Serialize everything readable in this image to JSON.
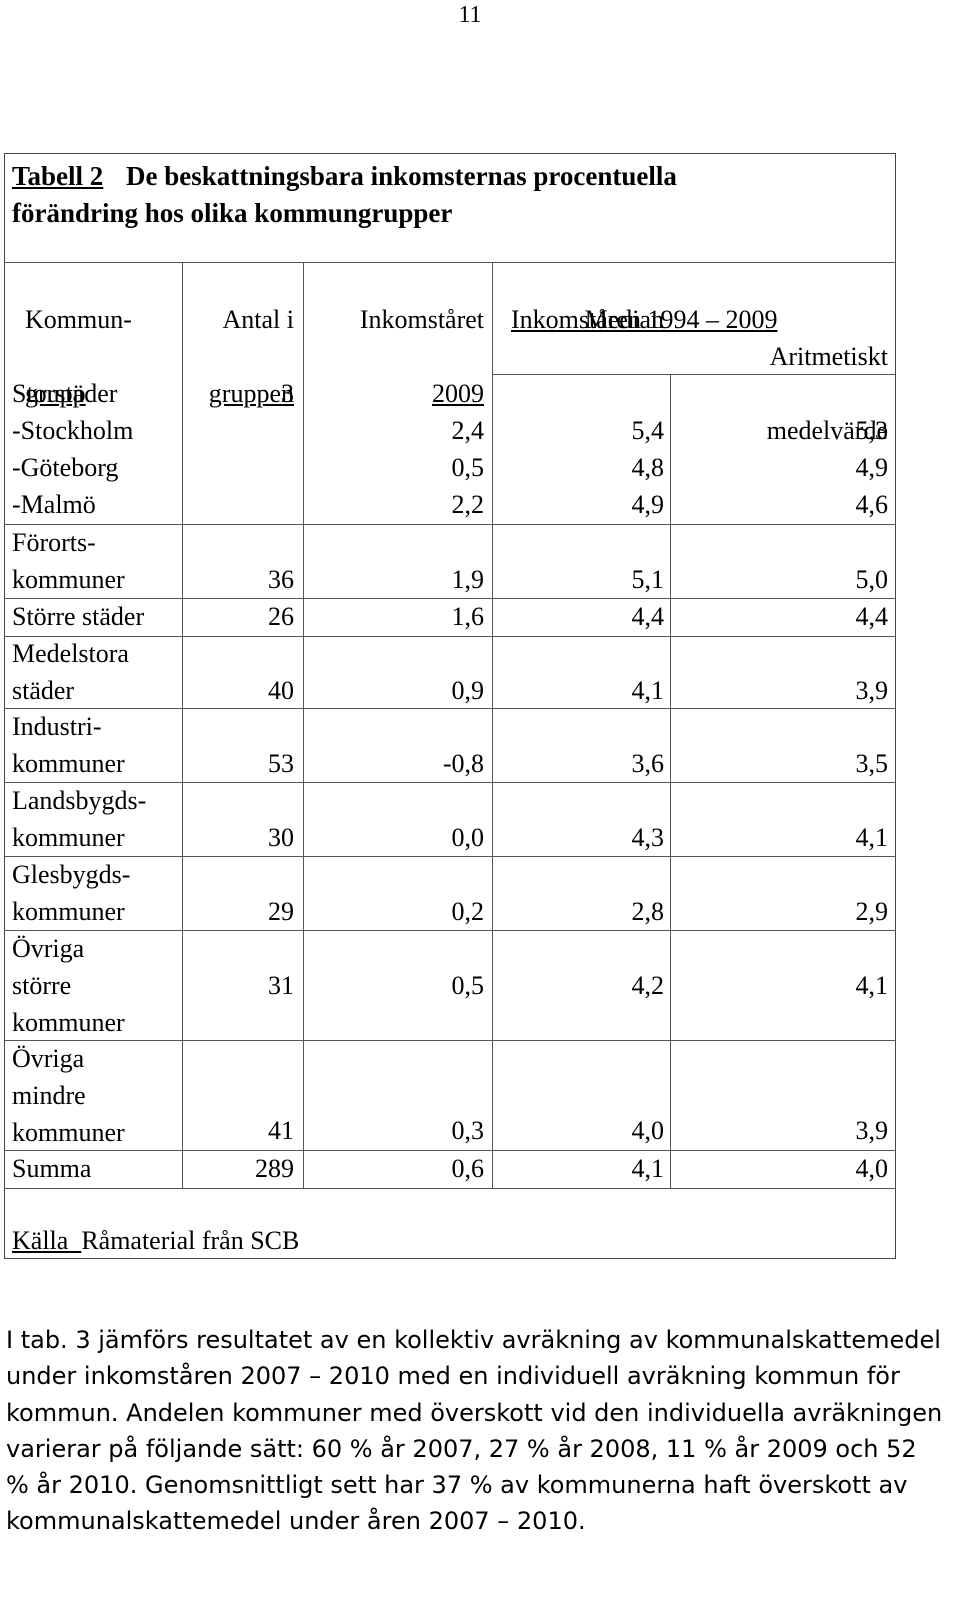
{
  "page_number": "11",
  "table": {
    "label": "Tabell 2",
    "title_line1": "De beskattningsbara inkomsternas procentuella",
    "title_line2": "förändring hos olika kommungrupper",
    "headers": {
      "col1_line1": "Kommun-",
      "col1_line2": "grupp",
      "col2_line1": "Antal i",
      "col2_line2": "gruppen",
      "col3_line1": "Inkomståret",
      "col3_line2": "2009",
      "span_header": "Inkomståren 1994 – 2009",
      "col4": "Median",
      "col5_line1": "Aritmetiskt",
      "col5_line2": "medelvärde"
    },
    "rows": [
      {
        "name": "Storstäder",
        "count": "3",
        "year2009": "",
        "median": "",
        "mean": ""
      },
      {
        "name": "-Stockholm",
        "count": "",
        "year2009": "2,4",
        "median": "5,4",
        "mean": "5,3"
      },
      {
        "name": "-Göteborg",
        "count": "",
        "year2009": "0,5",
        "median": "4,8",
        "mean": "4,9"
      },
      {
        "name": "-Malmö",
        "count": "",
        "year2009": "2,2",
        "median": "4,9",
        "mean": "4,6"
      },
      {
        "name_line1": "Förorts-",
        "name_line2": "kommuner",
        "count": "36",
        "year2009": "1,9",
        "median": "5,1",
        "mean": "5,0"
      },
      {
        "name": "Större städer",
        "count": "26",
        "year2009": "1,6",
        "median": "4,4",
        "mean": "4,4"
      },
      {
        "name_line1": "Medelstora",
        "name_line2": "städer",
        "count": "40",
        "year2009": "0,9",
        "median": "4,1",
        "mean": "3,9"
      },
      {
        "name_line1": "Industri-",
        "name_line2": "kommuner",
        "count": "53",
        "year2009": "-0,8",
        "median": "3,6",
        "mean": "3,5"
      },
      {
        "name_line1": "Landsbygds-",
        "name_line2": "kommuner",
        "count": "30",
        "year2009": "0,0",
        "median": "4,3",
        "mean": "4,1"
      },
      {
        "name_line1": "Glesbygds-",
        "name_line2": "kommuner",
        "count": "29",
        "year2009": "0,2",
        "median": "2,8",
        "mean": "2,9"
      },
      {
        "name_line1": "Övriga",
        "name_line2": "större",
        "name_line3": "kommuner",
        "count": "31",
        "year2009": "0,5",
        "median": "4,2",
        "mean": "4,1"
      },
      {
        "name_line1": "Övriga",
        "name_line2": "mindre",
        "name_line3": "kommuner",
        "count": "41",
        "year2009": "0,3",
        "median": "4,0",
        "mean": "3,9"
      },
      {
        "name": "Summa",
        "count": "289",
        "year2009": "0,6",
        "median": "4,1",
        "mean": "4,0"
      }
    ],
    "source_label": "Källa  ",
    "source_text": "Råmaterial från SCB"
  },
  "paragraph": "I tab. 3 jämförs resultatet av en kollektiv avräkning av kommunalskattemedel under inkomståren 2007 – 2010 med en individuell avräkning kommun för kommun. Andelen kommuner med överskott vid den individuella avräkningen varierar på följande sätt: 60 % år 2007, 27 % år 2008, 11 % år 2009 och 52 % år 2010. Genomsnittligt sett har 37 % av kommunerna haft överskott av kommunalskattemedel under åren 2007 – 2010."
}
